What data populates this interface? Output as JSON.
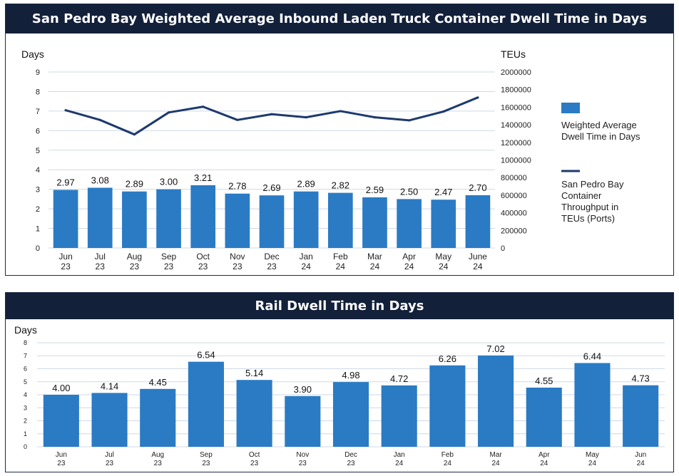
{
  "chart_data": [
    {
      "type": "bar",
      "title": "San Pedro Bay Weighted Average Inbound Laden Truck Container Dwell Time in Days",
      "ylabel": "Days",
      "y2label": "TEUs",
      "categories": [
        "Jun\n23",
        "Jul\n23",
        "Aug\n23",
        "Sep\n23",
        "Oct\n23",
        "Nov\n23",
        "Dec\n23",
        "Jan\n24",
        "Feb\n24",
        "Mar\n24",
        "Apr\n24",
        "May\n24",
        "June\n24"
      ],
      "ylim": [
        0,
        9
      ],
      "yticks": [
        "0",
        "1",
        "2",
        "3",
        "4",
        "5",
        "6",
        "7",
        "8",
        "9"
      ],
      "y2lim": [
        0,
        2000000
      ],
      "y2ticks": [
        "0",
        "200000",
        "400000",
        "600000",
        "800000",
        "1000000",
        "1200000",
        "1400000",
        "1600000",
        "1800000",
        "2000000"
      ],
      "grid": true,
      "legend_position": "right",
      "series": [
        {
          "name": "Weighted Average Dwell Time in Days",
          "type": "bar",
          "axis": "left",
          "color": "#2a7bc4",
          "values": [
            2.97,
            3.08,
            2.89,
            3.0,
            3.21,
            2.78,
            2.69,
            2.89,
            2.82,
            2.59,
            2.5,
            2.47,
            2.7
          ],
          "labels": [
            "2.97",
            "3.08",
            "2.89",
            "3.00",
            "3.21",
            "2.78",
            "2.69",
            "2.89",
            "2.82",
            "2.59",
            "2.50",
            "2.47",
            "2.70"
          ]
        },
        {
          "name": "San Pedro Bay Container Throughput in TEUs (Ports)",
          "type": "line",
          "axis": "right",
          "color": "#1d3a6e",
          "values": [
            1565000,
            1455000,
            1290000,
            1540000,
            1605000,
            1455000,
            1520000,
            1485000,
            1555000,
            1485000,
            1450000,
            1550000,
            1710000
          ]
        }
      ]
    },
    {
      "type": "bar",
      "title": "Rail Dwell Time in Days",
      "ylabel": "Days",
      "categories": [
        "Jun\n23",
        "Jul\n23",
        "Aug\n23",
        "Sep\n23",
        "Oct\n23",
        "Nov\n23",
        "Dec\n23",
        "Jan\n24",
        "Feb\n24",
        "Mar\n24",
        "Apr\n24",
        "May\n24",
        "Jun\n24"
      ],
      "ylim": [
        0,
        8
      ],
      "yticks": [
        "0",
        "1",
        "2",
        "3",
        "4",
        "5",
        "6",
        "7",
        "8"
      ],
      "grid": true,
      "series": [
        {
          "type": "bar",
          "color": "#2a7bc4",
          "values": [
            4.0,
            4.14,
            4.45,
            6.54,
            5.14,
            3.9,
            4.98,
            4.72,
            6.26,
            7.02,
            4.55,
            6.44,
            4.73
          ],
          "labels": [
            "4.00",
            "4.14",
            "4.45",
            "6.54",
            "5.14",
            "3.90",
            "4.98",
            "4.72",
            "6.26",
            "7.02",
            "4.55",
            "6.44",
            "4.73"
          ]
        }
      ]
    }
  ]
}
